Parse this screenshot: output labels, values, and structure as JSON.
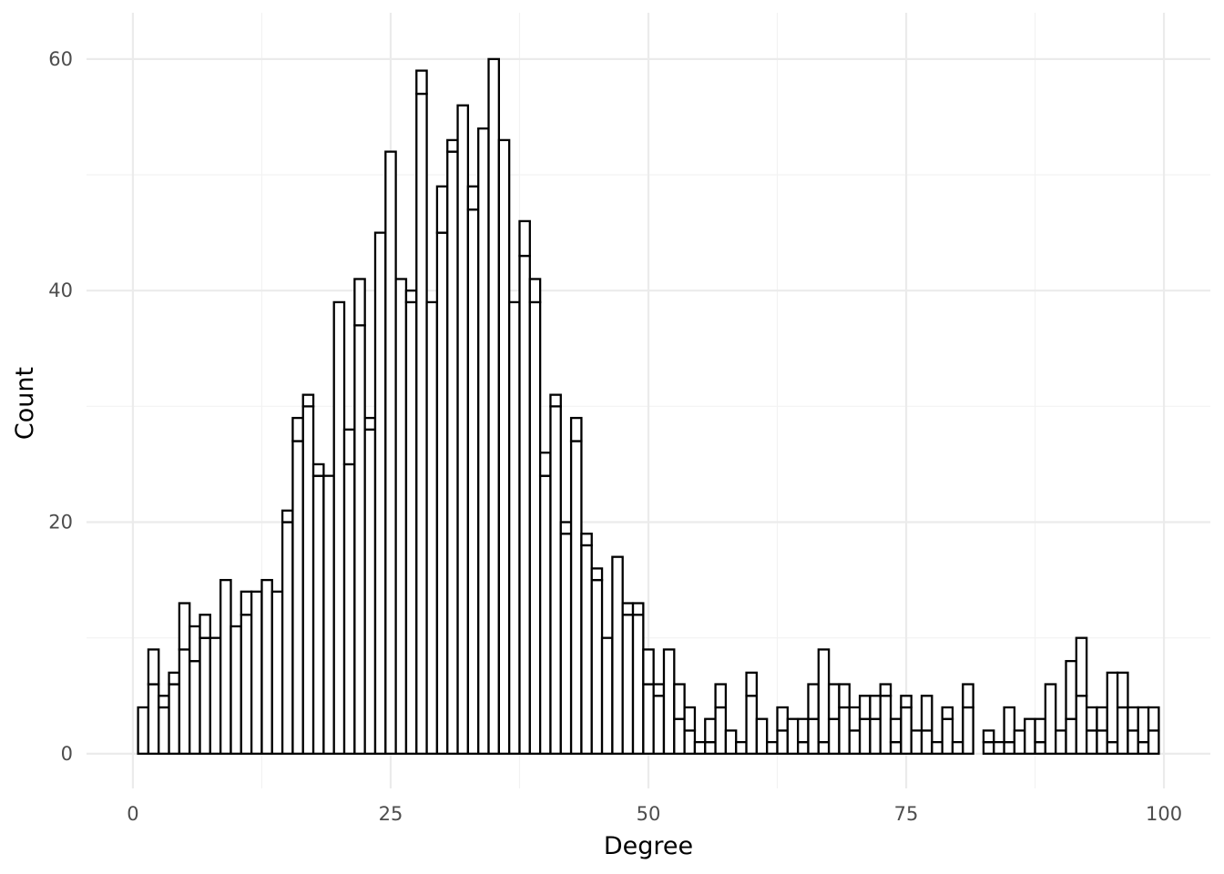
{
  "chart_data": {
    "type": "bar",
    "xlabel": "Degree",
    "ylabel": "Count",
    "xlim": [
      -4.5,
      104.5
    ],
    "ylim": [
      -3,
      64
    ],
    "x_ticks": [
      0,
      25,
      50,
      75,
      100
    ],
    "y_ticks": [
      0,
      20,
      40,
      60
    ],
    "x_tick_labels": [
      "0",
      "25",
      "50",
      "75",
      "100"
    ],
    "y_tick_labels": [
      "0",
      "20",
      "40",
      "60"
    ],
    "grid": true,
    "legend": "none",
    "bin_width": 1,
    "series": [
      {
        "values": [
          [
            1,
            0,
            4
          ],
          [
            2,
            0,
            6
          ],
          [
            2,
            6,
            9
          ],
          [
            3,
            0,
            4
          ],
          [
            3,
            4,
            5
          ],
          [
            4,
            0,
            6
          ],
          [
            4,
            6,
            7
          ],
          [
            5,
            0,
            9
          ],
          [
            5,
            9,
            13
          ],
          [
            6,
            0,
            8
          ],
          [
            6,
            8,
            11
          ],
          [
            7,
            0,
            10
          ],
          [
            7,
            10,
            12
          ],
          [
            8,
            0,
            10
          ],
          [
            9,
            0,
            15
          ],
          [
            10,
            0,
            11
          ],
          [
            11,
            0,
            12
          ],
          [
            11,
            12,
            14
          ],
          [
            12,
            0,
            14
          ],
          [
            13,
            0,
            15
          ],
          [
            14,
            0,
            14
          ],
          [
            15,
            0,
            20
          ],
          [
            15,
            20,
            21
          ],
          [
            16,
            0,
            27
          ],
          [
            16,
            27,
            29
          ],
          [
            17,
            0,
            30
          ],
          [
            17,
            30,
            31
          ],
          [
            18,
            0,
            24
          ],
          [
            18,
            24,
            25
          ],
          [
            19,
            0,
            24
          ],
          [
            20,
            0,
            39
          ],
          [
            21,
            0,
            25
          ],
          [
            21,
            25,
            28
          ],
          [
            22,
            0,
            37
          ],
          [
            22,
            37,
            41
          ],
          [
            23,
            0,
            28
          ],
          [
            23,
            28,
            29
          ],
          [
            24,
            0,
            45
          ],
          [
            25,
            0,
            52
          ],
          [
            26,
            0,
            41
          ],
          [
            27,
            0,
            39
          ],
          [
            27,
            39,
            40
          ],
          [
            28,
            0,
            57
          ],
          [
            28,
            57,
            59
          ],
          [
            29,
            0,
            39
          ],
          [
            30,
            0,
            45
          ],
          [
            30,
            45,
            49
          ],
          [
            31,
            0,
            52
          ],
          [
            31,
            52,
            53
          ],
          [
            32,
            0,
            56
          ],
          [
            33,
            0,
            47
          ],
          [
            33,
            47,
            49
          ],
          [
            34,
            0,
            54
          ],
          [
            35,
            0,
            60
          ],
          [
            36,
            0,
            53
          ],
          [
            37,
            0,
            39
          ],
          [
            38,
            0,
            43
          ],
          [
            38,
            43,
            46
          ],
          [
            39,
            0,
            39
          ],
          [
            39,
            39,
            41
          ],
          [
            40,
            0,
            24
          ],
          [
            40,
            24,
            26
          ],
          [
            41,
            0,
            30
          ],
          [
            41,
            30,
            31
          ],
          [
            42,
            0,
            19
          ],
          [
            42,
            19,
            20
          ],
          [
            43,
            0,
            27
          ],
          [
            43,
            27,
            29
          ],
          [
            44,
            0,
            18
          ],
          [
            44,
            18,
            19
          ],
          [
            45,
            0,
            15
          ],
          [
            45,
            15,
            16
          ],
          [
            46,
            0,
            10
          ],
          [
            47,
            0,
            17
          ],
          [
            48,
            0,
            12
          ],
          [
            48,
            12,
            13
          ],
          [
            49,
            0,
            12
          ],
          [
            49,
            12,
            13
          ],
          [
            50,
            0,
            6
          ],
          [
            50,
            6,
            9
          ],
          [
            51,
            0,
            5
          ],
          [
            51,
            5,
            6
          ],
          [
            52,
            0,
            9
          ],
          [
            53,
            0,
            3
          ],
          [
            53,
            3,
            6
          ],
          [
            54,
            0,
            2
          ],
          [
            54,
            2,
            4
          ],
          [
            55,
            0,
            1
          ],
          [
            56,
            0,
            1
          ],
          [
            56,
            1,
            3
          ],
          [
            57,
            0,
            4
          ],
          [
            57,
            4,
            6
          ],
          [
            58,
            0,
            2
          ],
          [
            59,
            0,
            1
          ],
          [
            60,
            0,
            5
          ],
          [
            60,
            5,
            7
          ],
          [
            61,
            0,
            3
          ],
          [
            62,
            0,
            1
          ],
          [
            63,
            0,
            2
          ],
          [
            63,
            2,
            4
          ],
          [
            64,
            0,
            3
          ],
          [
            65,
            0,
            1
          ],
          [
            65,
            1,
            3
          ],
          [
            66,
            0,
            3
          ],
          [
            66,
            3,
            6
          ],
          [
            67,
            0,
            1
          ],
          [
            67,
            1,
            9
          ],
          [
            68,
            0,
            3
          ],
          [
            68,
            3,
            6
          ],
          [
            69,
            0,
            4
          ],
          [
            69,
            4,
            6
          ],
          [
            70,
            0,
            2
          ],
          [
            70,
            2,
            4
          ],
          [
            71,
            0,
            3
          ],
          [
            71,
            3,
            5
          ],
          [
            72,
            0,
            3
          ],
          [
            72,
            3,
            5
          ],
          [
            73,
            0,
            5
          ],
          [
            73,
            5,
            6
          ],
          [
            74,
            0,
            1
          ],
          [
            74,
            1,
            3
          ],
          [
            75,
            0,
            4
          ],
          [
            75,
            4,
            5
          ],
          [
            76,
            0,
            2
          ],
          [
            77,
            0,
            2
          ],
          [
            77,
            2,
            5
          ],
          [
            78,
            0,
            1
          ],
          [
            79,
            0,
            3
          ],
          [
            79,
            3,
            4
          ],
          [
            80,
            0,
            1
          ],
          [
            81,
            0,
            4
          ],
          [
            81,
            4,
            6
          ],
          [
            83,
            0,
            1
          ],
          [
            83,
            1,
            2
          ],
          [
            84,
            0,
            1
          ],
          [
            85,
            0,
            1
          ],
          [
            85,
            1,
            4
          ],
          [
            86,
            0,
            2
          ],
          [
            87,
            0,
            3
          ],
          [
            88,
            0,
            1
          ],
          [
            88,
            1,
            3
          ],
          [
            89,
            0,
            6
          ],
          [
            90,
            0,
            2
          ],
          [
            91,
            0,
            3
          ],
          [
            91,
            3,
            8
          ],
          [
            92,
            0,
            5
          ],
          [
            92,
            5,
            10
          ],
          [
            93,
            0,
            2
          ],
          [
            93,
            2,
            4
          ],
          [
            94,
            0,
            2
          ],
          [
            94,
            2,
            4
          ],
          [
            95,
            0,
            1
          ],
          [
            95,
            1,
            7
          ],
          [
            96,
            0,
            4
          ],
          [
            96,
            4,
            7
          ],
          [
            97,
            0,
            2
          ],
          [
            97,
            2,
            4
          ],
          [
            98,
            0,
            1
          ],
          [
            98,
            1,
            4
          ],
          [
            99,
            0,
            2
          ],
          [
            99,
            2,
            4
          ]
        ]
      }
    ]
  }
}
